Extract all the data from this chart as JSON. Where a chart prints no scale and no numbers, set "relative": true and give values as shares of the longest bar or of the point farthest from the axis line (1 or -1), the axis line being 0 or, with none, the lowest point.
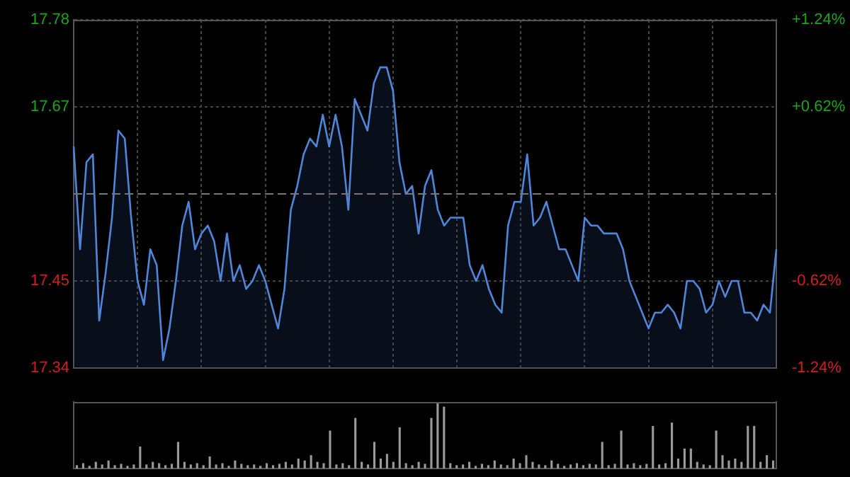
{
  "chart_data": [
    {
      "type": "area",
      "categories": [
        null,
        null,
        null,
        null,
        null,
        null,
        null,
        null,
        null,
        null,
        null,
        null,
        null,
        null,
        null,
        null,
        null,
        null,
        null,
        null,
        null,
        null,
        null,
        null,
        null,
        null,
        null,
        null,
        null,
        null,
        null,
        null,
        null,
        null,
        null,
        null,
        null,
        null,
        null,
        null,
        null,
        null,
        null,
        null,
        null,
        null,
        null,
        null,
        null,
        null,
        null,
        null,
        null,
        null,
        null,
        null,
        null,
        null,
        null,
        null,
        null,
        null,
        null,
        null,
        null,
        null,
        null,
        null,
        null,
        null,
        null,
        null,
        null,
        null,
        null,
        null,
        null,
        null,
        null,
        null,
        null,
        null,
        null,
        null,
        null,
        null,
        null,
        null,
        null,
        null,
        null,
        null,
        null,
        null,
        null,
        null,
        null,
        null,
        null,
        null,
        null,
        null,
        null,
        null,
        null,
        null,
        null,
        null,
        null,
        null,
        null
      ],
      "series": [
        {
          "color": "#4f86d9",
          "values": [
            17.62,
            17.49,
            17.6,
            17.61,
            17.4,
            17.46,
            17.53,
            17.64,
            17.63,
            17.53,
            17.45,
            17.42,
            17.49,
            17.47,
            17.35,
            17.39,
            17.45,
            17.52,
            17.55,
            17.49,
            17.51,
            17.52,
            17.5,
            17.45,
            17.51,
            17.45,
            17.47,
            17.44,
            17.45,
            17.47,
            17.45,
            17.42,
            17.39,
            17.44,
            17.54,
            17.57,
            17.61,
            17.63,
            17.62,
            17.66,
            17.62,
            17.66,
            17.62,
            17.54,
            17.68,
            17.66,
            17.64,
            17.7,
            17.72,
            17.72,
            17.69,
            17.6,
            17.56,
            17.57,
            17.51,
            17.57,
            17.59,
            17.54,
            17.52,
            17.53,
            17.53,
            17.53,
            17.47,
            17.45,
            17.47,
            17.44,
            17.42,
            17.41,
            17.52,
            17.55,
            17.55,
            17.61,
            17.52,
            17.53,
            17.55,
            17.52,
            17.49,
            17.49,
            17.47,
            17.45,
            17.53,
            17.52,
            17.52,
            17.51,
            17.51,
            17.51,
            17.49,
            17.45,
            17.43,
            17.41,
            17.39,
            17.41,
            17.41,
            17.42,
            17.41,
            17.39,
            17.45,
            17.45,
            17.44,
            17.41,
            17.42,
            17.45,
            17.43,
            17.45,
            17.45,
            17.41,
            17.41,
            17.4,
            17.42,
            17.41,
            17.49
          ]
        }
      ],
      "ylim": [
        17.34,
        17.78
      ],
      "yticks": [
        17.34,
        17.45,
        17.67,
        17.78
      ],
      "y2lim": [
        -1.24,
        1.24
      ],
      "y2ticks": [
        {
          "value": -1.24,
          "label": "-1.24%"
        },
        {
          "value": -0.62,
          "label": "-0.62%"
        },
        {
          "value": 0.62,
          "label": "+0.62%"
        },
        {
          "value": 1.24,
          "label": "+1.24%"
        }
      ],
      "ref_lines": [
        {
          "axis": "y",
          "value": 17.56,
          "line_style": "dashed",
          "color": "#777777"
        }
      ],
      "grid": true,
      "tick_labels": "y",
      "legend": false
    },
    {
      "type": "bar",
      "relative": true,
      "categories": [
        null,
        null,
        null,
        null,
        null,
        null,
        null,
        null,
        null,
        null,
        null,
        null,
        null,
        null,
        null,
        null,
        null,
        null,
        null,
        null,
        null,
        null,
        null,
        null,
        null,
        null,
        null,
        null,
        null,
        null,
        null,
        null,
        null,
        null,
        null,
        null,
        null,
        null,
        null,
        null,
        null,
        null,
        null,
        null,
        null,
        null,
        null,
        null,
        null,
        null,
        null,
        null,
        null,
        null,
        null,
        null,
        null,
        null,
        null,
        null,
        null,
        null,
        null,
        null,
        null,
        null,
        null,
        null,
        null,
        null,
        null,
        null,
        null,
        null,
        null,
        null,
        null,
        null,
        null,
        null,
        null,
        null,
        null,
        null,
        null,
        null,
        null,
        null,
        null,
        null,
        null,
        null,
        null,
        null,
        null,
        null,
        null,
        null,
        null,
        null,
        null,
        null,
        null,
        null,
        null,
        null,
        null,
        null,
        null,
        null,
        null
      ],
      "series": [
        {
          "color": "#9a9a9a",
          "values": [
            0.05,
            0.08,
            0.04,
            0.1,
            0.06,
            0.12,
            0.05,
            0.07,
            0.04,
            0.06,
            0.33,
            0.06,
            0.1,
            0.08,
            0.05,
            0.07,
            0.4,
            0.1,
            0.06,
            0.08,
            0.05,
            0.18,
            0.06,
            0.08,
            0.04,
            0.12,
            0.07,
            0.05,
            0.06,
            0.04,
            0.08,
            0.05,
            0.07,
            0.1,
            0.06,
            0.15,
            0.12,
            0.2,
            0.1,
            0.08,
            0.57,
            0.06,
            0.08,
            0.05,
            0.76,
            0.1,
            0.06,
            0.4,
            0.15,
            0.22,
            0.1,
            0.62,
            0.08,
            0.05,
            0.1,
            0.07,
            0.76,
            1,
            0.93,
            0.08,
            0.05,
            0.06,
            0.1,
            0.04,
            0.07,
            0.05,
            0.12,
            0.06,
            0.05,
            0.15,
            0.08,
            0.2,
            0.1,
            0.06,
            0.05,
            0.12,
            0.07,
            0.04,
            0.06,
            0.08,
            0.05,
            0.07,
            0.06,
            0.4,
            0.05,
            0.07,
            0.57,
            0.06,
            0.08,
            0.05,
            0.07,
            0.64,
            0.06,
            0.08,
            0.69,
            0.15,
            0.3,
            0.3,
            0.1,
            0.06,
            0.05,
            0.57,
            0.2,
            0.12,
            0.15,
            0.1,
            0.64,
            0.64,
            0.1,
            0.2,
            0.12
          ]
        }
      ],
      "tick_labels": false,
      "legend": false
    }
  ]
}
